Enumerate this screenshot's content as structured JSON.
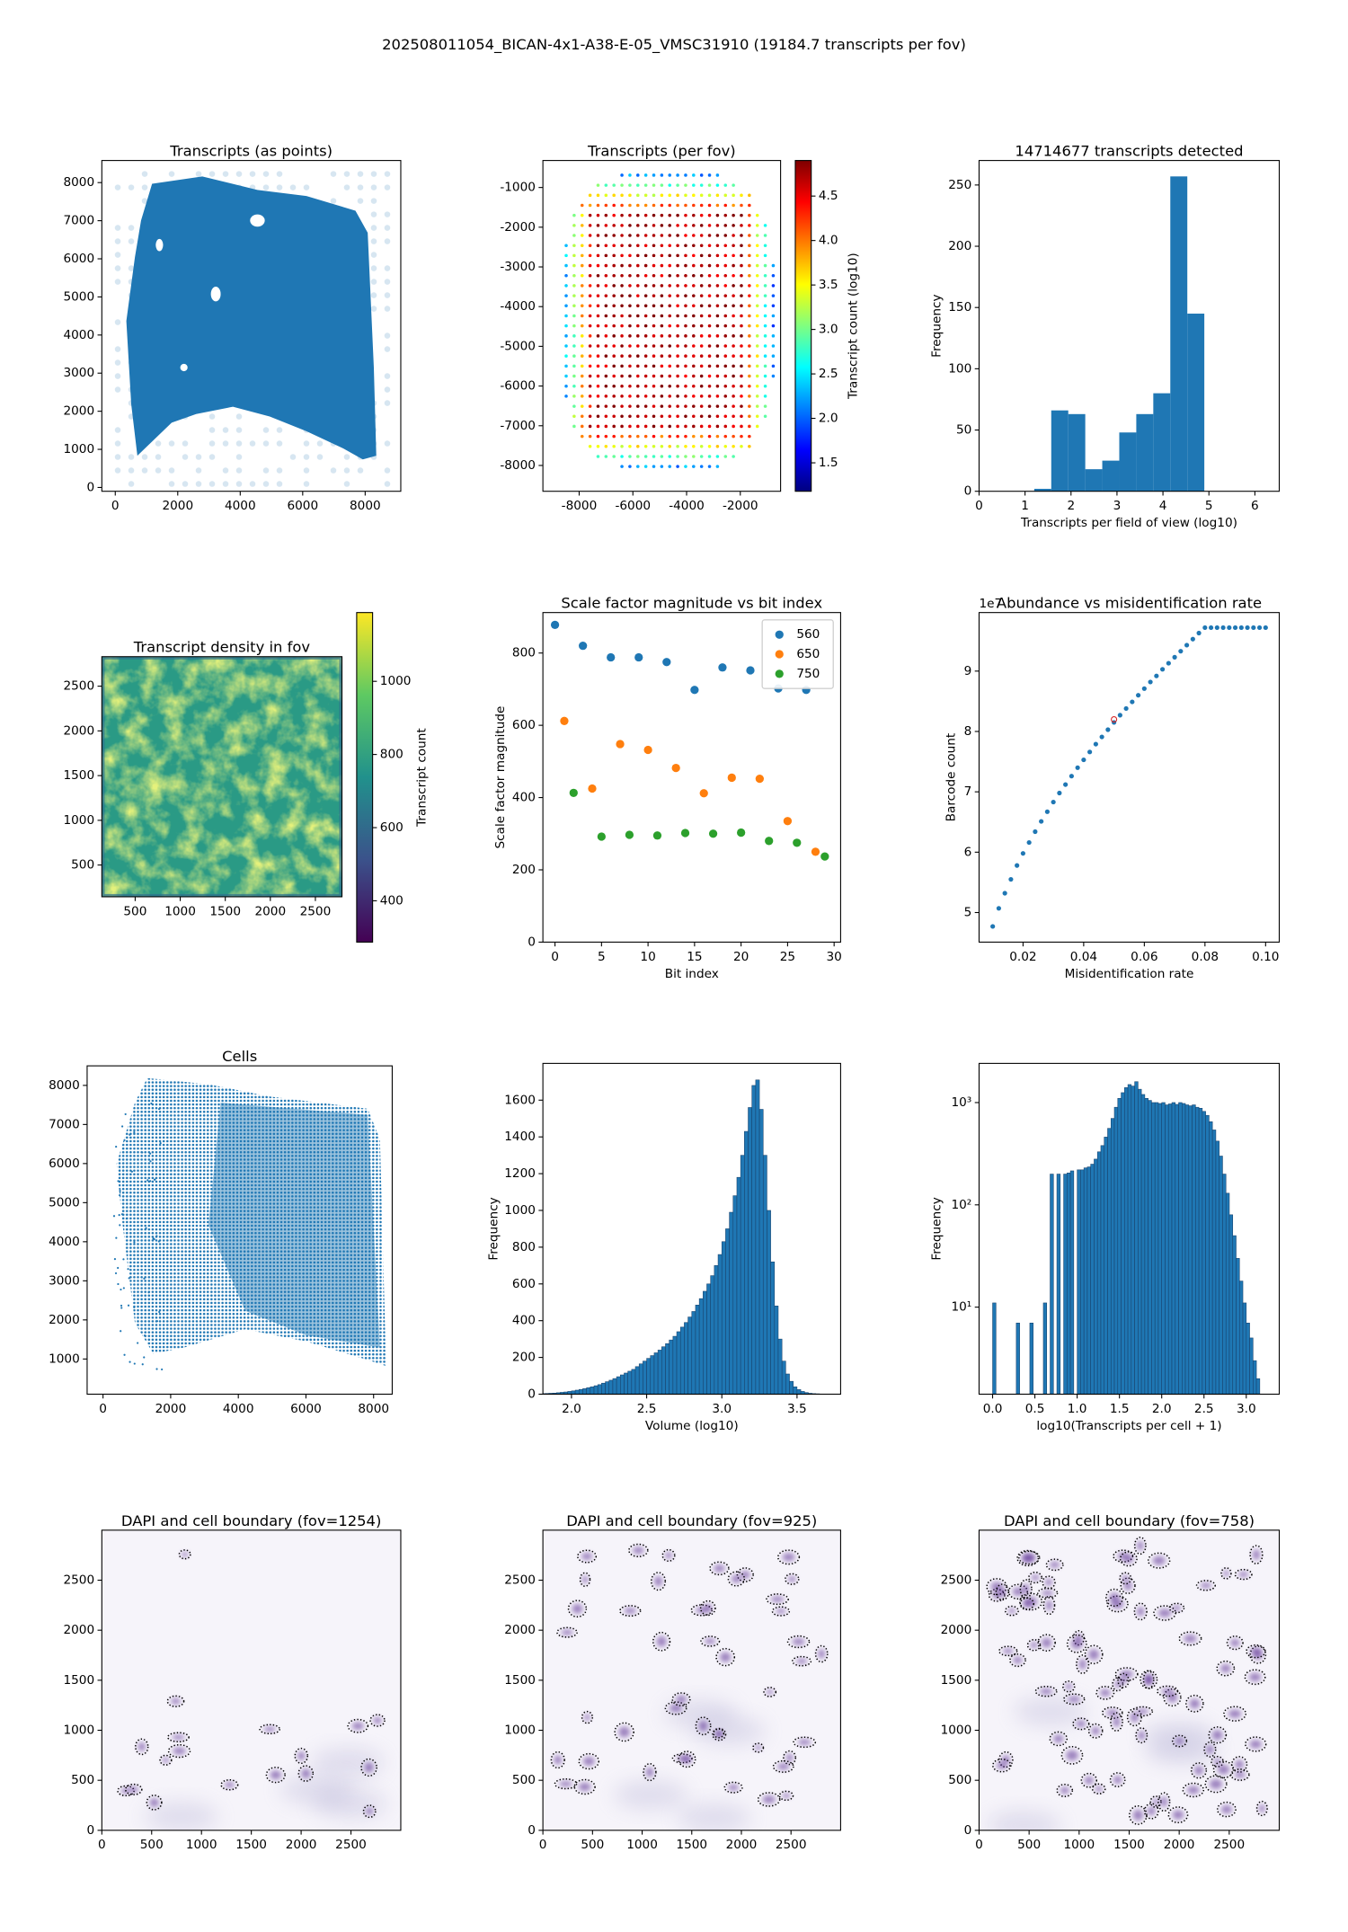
{
  "title": "202508011054_BICAN-4x1-A38-E-05_VMSC31910 (19184.7 transcripts per fov)",
  "chart_data": [
    {
      "type": "image",
      "title": "Transcripts (as points)",
      "color": "#1f77b4",
      "xlim": [
        -430,
        9140
      ],
      "ylim": [
        -100,
        8580
      ],
      "xticks": [
        0,
        2000,
        4000,
        6000,
        8000
      ],
      "yticks": [
        0,
        1000,
        2000,
        3000,
        4000,
        5000,
        6000,
        7000,
        8000
      ]
    },
    {
      "type": "image",
      "title": "Transcripts (per fov)",
      "cmap": "jet",
      "xlim": [
        -9350,
        -500
      ],
      "ylim": [
        -8650,
        -320
      ],
      "xticks": [
        -8000,
        -6000,
        -4000,
        -2000
      ],
      "yticks": [
        -8000,
        -7000,
        -6000,
        -5000,
        -4000,
        -3000,
        -2000,
        -1000
      ],
      "colorbar": {
        "label": "Transcript count (log10)",
        "lim": [
          1.18,
          4.9
        ],
        "ticks": [
          1.5,
          {
            "value": 2,
            "label": "2.0"
          },
          2.5,
          {
            "value": 3,
            "label": "3.0"
          },
          3.5,
          {
            "value": 4,
            "label": "4.0"
          },
          4.5
        ]
      }
    },
    {
      "type": "histogram",
      "title": "14714677 transcripts detected",
      "xlabel": "Transcripts per field of view (log10)",
      "ylabel": "Frequency",
      "color": "#1f77b4",
      "bins": [
        1.2,
        1.57,
        1.94,
        2.31,
        2.68,
        3.05,
        3.42,
        3.79,
        4.16,
        4.53,
        4.9
      ],
      "values": [
        2,
        66,
        63,
        18,
        25,
        48,
        63,
        80,
        257,
        145
      ],
      "xlim": [
        0,
        6.53
      ],
      "ylim": [
        0,
        270
      ],
      "xticks": [
        0,
        1,
        2,
        3,
        4,
        5,
        6
      ],
      "yticks": [
        0,
        50,
        100,
        150,
        200,
        250
      ]
    },
    {
      "type": "image",
      "title": "Transcript density in fov",
      "cmap": "viridis",
      "xlim": [
        130,
        2795
      ],
      "ylim": [
        145,
        2830
      ],
      "xticks": [
        500,
        1000,
        1500,
        2000,
        2500
      ],
      "yticks": [
        500,
        1000,
        1500,
        2000,
        2500
      ],
      "colorbar": {
        "label": "Transcript count",
        "lim": [
          287,
          1188
        ],
        "ticks": [
          400,
          600,
          800,
          1000
        ]
      }
    },
    {
      "type": "scatter",
      "title": "Scale factor magnitude vs bit index",
      "xlabel": "Bit index",
      "ylabel": "Scale factor magnitude",
      "legend": "upper right",
      "series": [
        {
          "name": "560",
          "color": "#1f77b4",
          "x": [
            0,
            3,
            6,
            9,
            12,
            15,
            18,
            21,
            24,
            27
          ],
          "values": [
            878,
            820,
            788,
            788,
            775,
            698,
            760,
            752,
            702,
            698
          ]
        },
        {
          "name": "650",
          "color": "#ff7f0e",
          "x": [
            1,
            4,
            7,
            10,
            13,
            16,
            19,
            22,
            25,
            28
          ],
          "values": [
            612,
            425,
            548,
            532,
            482,
            412,
            455,
            452,
            335,
            250
          ]
        },
        {
          "name": "750",
          "color": "#2ca02c",
          "x": [
            2,
            5,
            8,
            11,
            14,
            17,
            20,
            23,
            26,
            29
          ],
          "values": [
            413,
            292,
            297,
            295,
            302,
            300,
            303,
            280,
            275,
            237
          ]
        }
      ],
      "xlim": [
        -1.3,
        30.7
      ],
      "ylim": [
        0,
        912
      ],
      "xticks": [
        0,
        5,
        10,
        15,
        20,
        25,
        30
      ],
      "yticks": [
        0,
        200,
        400,
        600,
        800
      ]
    },
    {
      "type": "scatter",
      "title": "Abundance vs misidentification rate",
      "xlabel": "Misidentification rate",
      "ylabel": "Barcode count",
      "y_offset_label": "1e7",
      "series": [
        {
          "color": "#1f77b4",
          "x": [
            0.01,
            0.012,
            0.014,
            0.016,
            0.018,
            0.02,
            0.022,
            0.024,
            0.026,
            0.028,
            0.03,
            0.032,
            0.034,
            0.036,
            0.038,
            0.04,
            0.042,
            0.044,
            0.046,
            0.048,
            0.05,
            0.052,
            0.054,
            0.056,
            0.058,
            0.06,
            0.062,
            0.064,
            0.066,
            0.068,
            0.07,
            0.072,
            0.074,
            0.076,
            0.078,
            0.08,
            0.082,
            0.084,
            0.086,
            0.088,
            0.09,
            0.092,
            0.094,
            0.096,
            0.098,
            0.1
          ],
          "values": [
            4.77,
            5.07,
            5.32,
            5.55,
            5.78,
            5.98,
            6.16,
            6.34,
            6.51,
            6.67,
            6.83,
            6.98,
            7.12,
            7.26,
            7.4,
            7.53,
            7.66,
            7.79,
            7.91,
            8.03,
            8.15,
            8.27,
            8.38,
            8.49,
            8.6,
            8.71,
            8.82,
            8.92,
            9.03,
            9.13,
            9.23,
            9.33,
            9.43,
            9.53,
            9.63,
            9.72,
            9.72,
            9.72,
            9.72,
            9.72,
            9.72,
            9.72,
            9.72,
            9.72,
            9.72,
            9.72
          ]
        }
      ],
      "highlight": {
        "x": 0.05,
        "value": 8.2,
        "color": "#d62728"
      },
      "xlim": [
        0.0055,
        0.1045
      ],
      "ylim": [
        4.51,
        9.97
      ],
      "xticks": [
        0.02,
        0.04,
        0.06,
        0.08,
        {
          "value": 0.1,
          "label": "0.10"
        }
      ],
      "yticks": [
        5,
        6,
        7,
        8,
        9
      ]
    },
    {
      "type": "image",
      "title": "Cells",
      "color": "#1f77b4",
      "xlim": [
        -470,
        8550
      ],
      "ylim": [
        100,
        8500
      ],
      "xticks": [
        0,
        2000,
        4000,
        6000,
        8000
      ],
      "yticks": [
        1000,
        2000,
        3000,
        4000,
        5000,
        6000,
        7000,
        8000
      ]
    },
    {
      "type": "histogram",
      "xlabel": "Volume (log10)",
      "ylabel": "Frequency",
      "color": "#1f77b4",
      "edgecolor": "#17406a",
      "bins": [
        1.75,
        1.775,
        1.8,
        1.825,
        1.85,
        1.875,
        1.9,
        1.925,
        1.95,
        1.975,
        2,
        2.025,
        2.05,
        2.075,
        2.1,
        2.125,
        2.15,
        2.175,
        2.2,
        2.225,
        2.25,
        2.275,
        2.3,
        2.325,
        2.35,
        2.375,
        2.4,
        2.425,
        2.45,
        2.475,
        2.5,
        2.525,
        2.55,
        2.575,
        2.6,
        2.625,
        2.65,
        2.675,
        2.7,
        2.725,
        2.75,
        2.775,
        2.8,
        2.825,
        2.85,
        2.875,
        2.9,
        2.925,
        2.95,
        2.975,
        3,
        3.025,
        3.05,
        3.075,
        3.1,
        3.125,
        3.15,
        3.175,
        3.2,
        3.225,
        3.25,
        3.275,
        3.3,
        3.325,
        3.35,
        3.375,
        3.4,
        3.425,
        3.45,
        3.475,
        3.5,
        3.525,
        3.55,
        3.575,
        3.6,
        3.625,
        3.65,
        3.675,
        3.7,
        3.725,
        3.75
      ],
      "values": [
        2,
        3,
        3,
        4,
        5,
        6,
        8,
        10,
        12,
        15,
        18,
        22,
        26,
        30,
        35,
        40,
        46,
        52,
        60,
        68,
        76,
        85,
        95,
        105,
        115,
        125,
        135,
        150,
        165,
        180,
        195,
        210,
        225,
        240,
        258,
        275,
        295,
        315,
        340,
        365,
        390,
        420,
        450,
        485,
        520,
        560,
        600,
        645,
        700,
        760,
        830,
        900,
        990,
        1080,
        1180,
        1300,
        1430,
        1560,
        1680,
        1710,
        1550,
        1300,
        1000,
        720,
        480,
        300,
        180,
        110,
        70,
        40,
        25,
        15,
        9,
        5,
        3,
        2,
        1,
        1,
        0,
        0
      ],
      "xlim": [
        1.81,
        3.79
      ],
      "ylim": [
        0,
        1800
      ],
      "xticks": [
        {
          "value": 2,
          "label": "2.0"
        },
        2.5,
        {
          "value": 3,
          "label": "3.0"
        },
        3.5
      ],
      "yticks": [
        0,
        200,
        400,
        600,
        800,
        1000,
        1200,
        1400,
        1600
      ]
    },
    {
      "type": "histogram",
      "xlabel": "log10(Transcripts per cell + 1)",
      "ylabel": "Frequency",
      "color": "#1f77b4",
      "edgecolor": "#17406a",
      "yscale": "log",
      "bins": [
        0,
        0.04,
        0.08,
        0.12,
        0.16,
        0.2,
        0.24,
        0.28,
        0.32,
        0.36,
        0.4,
        0.44,
        0.48,
        0.52,
        0.56,
        0.6,
        0.64,
        0.68,
        0.72,
        0.76,
        0.8,
        0.84,
        0.88,
        0.92,
        0.96,
        1,
        1.04,
        1.08,
        1.12,
        1.16,
        1.2,
        1.24,
        1.28,
        1.32,
        1.36,
        1.4,
        1.44,
        1.48,
        1.52,
        1.56,
        1.6,
        1.64,
        1.68,
        1.72,
        1.76,
        1.8,
        1.84,
        1.88,
        1.92,
        1.96,
        2,
        2.04,
        2.08,
        2.12,
        2.16,
        2.2,
        2.24,
        2.28,
        2.32,
        2.36,
        2.4,
        2.44,
        2.48,
        2.52,
        2.56,
        2.6,
        2.64,
        2.68,
        2.72,
        2.76,
        2.8,
        2.84,
        2.88,
        2.92,
        2.96,
        3,
        3.04,
        3.08,
        3.12,
        3.16,
        3.2
      ],
      "values": [
        11,
        0,
        0,
        0,
        0,
        0,
        0,
        7,
        0,
        0,
        0,
        7,
        0,
        0,
        0,
        11,
        0,
        200,
        0,
        200,
        0,
        200,
        205,
        215,
        0,
        220,
        220,
        230,
        235,
        250,
        280,
        330,
        380,
        460,
        560,
        700,
        900,
        1100,
        1250,
        1400,
        1500,
        1450,
        1600,
        1350,
        1200,
        1100,
        1050,
        1000,
        1000,
        980,
        1000,
        950,
        970,
        1000,
        960,
        1000,
        980,
        950,
        930,
        950,
        900,
        880,
        820,
        750,
        650,
        540,
        420,
        300,
        200,
        130,
        80,
        50,
        30,
        18,
        11,
        7,
        5,
        3,
        2,
        1
      ],
      "xlim": [
        -0.16,
        3.39
      ],
      "ylim": [
        1.41,
        2415
      ],
      "xticks": [
        {
          "value": 0,
          "label": "0.0"
        },
        0.5,
        {
          "value": 1,
          "label": "1.0"
        },
        1.5,
        {
          "value": 2,
          "label": "2.0"
        },
        2.5,
        {
          "value": 3,
          "label": "3.0"
        }
      ],
      "yticks": [
        {
          "value": 10,
          "label": "10¹"
        },
        {
          "value": 100,
          "label": "10²"
        },
        {
          "value": 1000,
          "label": "10³"
        }
      ]
    },
    {
      "type": "image",
      "title": "DAPI and cell boundary (fov=1254)",
      "cmap": "Purples",
      "xlim": [
        0,
        3000
      ],
      "ylim": [
        0,
        3000
      ],
      "xticks": [
        0,
        500,
        1000,
        1500,
        2000,
        2500
      ],
      "yticks": [
        0,
        500,
        1000,
        1500,
        2000,
        2500
      ]
    },
    {
      "type": "image",
      "title": "DAPI and cell boundary (fov=925)",
      "cmap": "Purples",
      "xlim": [
        0,
        3000
      ],
      "ylim": [
        0,
        3000
      ],
      "xticks": [
        0,
        500,
        1000,
        1500,
        2000,
        2500
      ],
      "yticks": [
        0,
        500,
        1000,
        1500,
        2000,
        2500
      ]
    },
    {
      "type": "image",
      "title": "DAPI and cell boundary (fov=758)",
      "cmap": "Purples",
      "xlim": [
        0,
        3000
      ],
      "ylim": [
        0,
        3000
      ],
      "xticks": [
        0,
        500,
        1000,
        1500,
        2000,
        2500
      ],
      "yticks": [
        0,
        500,
        1000,
        1500,
        2000,
        2500
      ]
    }
  ]
}
